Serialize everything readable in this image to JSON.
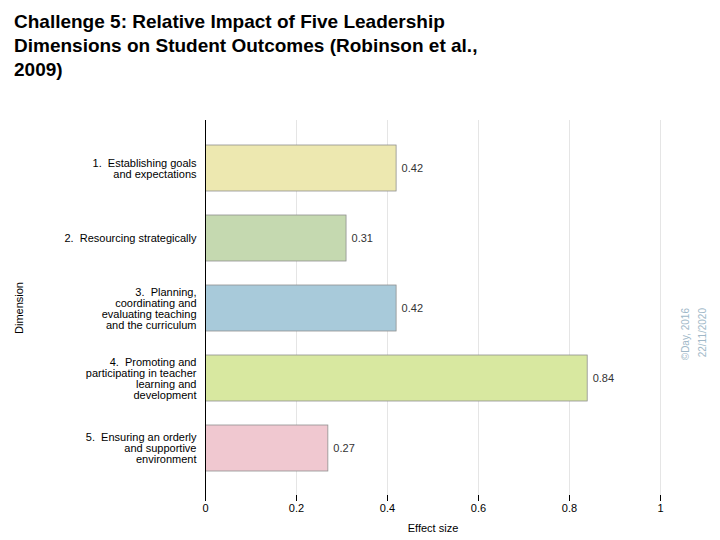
{
  "chart_data": {
    "type": "bar",
    "orientation": "horizontal",
    "title": "Challenge 5: Relative Impact of Five Leadership\nDimensions on Student Outcomes (Robinson et al.,\n2009)",
    "categories": [
      "1.  Establishing goals\nand expectations",
      "2.  Resourcing strategically",
      "3.  Planning,\ncoordinating and\nevaluating teaching\nand the curriculum",
      "4.  Promoting and\nparticipating in teacher\nlearning and\ndevelopment",
      "5.  Ensuring an orderly\nand supportive\nenvironment"
    ],
    "values": [
      0.42,
      0.31,
      0.42,
      0.84,
      0.27
    ],
    "colors": [
      "#EDE8B0",
      "#C5D9B0",
      "#A8CADA",
      "#D8E8A0",
      "#F0C8D0"
    ],
    "xlabel": "Effect size",
    "ylabel": "Dimension",
    "xlim": [
      0,
      1
    ],
    "xticks": [
      0,
      0.2,
      0.4,
      0.6,
      0.8,
      1
    ],
    "grid": true,
    "data_labels": true,
    "annotations": [
      "©Day, 2016",
      "22/11/2020"
    ]
  }
}
